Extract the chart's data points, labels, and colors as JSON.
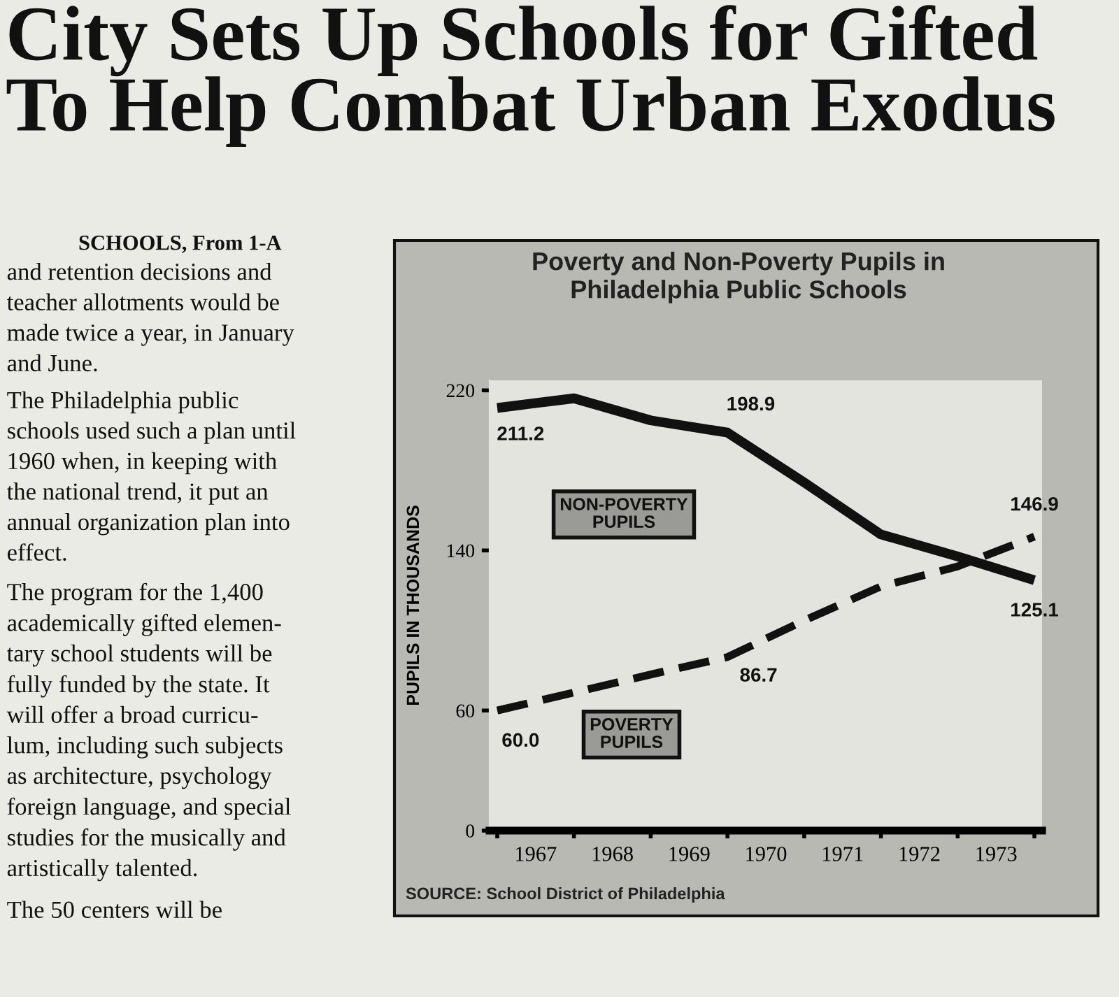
{
  "chart_data": [
    {
      "type": "other",
      "title": "City Sets Up Schools for Gifted\nTo Help Combat Urban Exodus",
      "subtitle": "SCHOOLS, From 1-A",
      "annotations": [
        "and retention decisions and\nteacher allotments would be\nmade twice a year, in January\nand June.",
        "The Philadelphia public\nschools used such a plan until\n1960 when, in keeping with\nthe national trend, it put an\nannual organization plan into\neffect.",
        "The program for the 1,400\nacademically gifted elemen-\ntary school students will be\nfully funded by the state. It\nwill offer a broad curricu-\nlum, including such subjects\nas architecture, psychology\nforeign language, and special\nstudies for the musically and\nartistically talented.",
        "The 50 centers will be"
      ]
    },
    {
      "type": "line",
      "title": "Poverty and Non-Poverty Pupils in\nPhiladelphia Public Schools",
      "ylabel": "PUPILS IN THOUSANDS",
      "x": [
        1967,
        1968,
        1969,
        1970,
        1971,
        1972,
        1973,
        1974
      ],
      "series": [
        {
          "name": "NON-POVERTY\nPUPILS",
          "color": "#111111",
          "line_style": "solid",
          "values": [
            211.2,
            216,
            205,
            198.9,
            174,
            148,
            137,
            125.1
          ],
          "value_labels": [
            "211.2",
            null,
            null,
            "198.9",
            null,
            null,
            null,
            "125.1"
          ]
        },
        {
          "name": "POVERTY\nPUPILS",
          "color": "#111111",
          "line_style": "dashed",
          "values": [
            60.0,
            69,
            78,
            86.7,
            105,
            122,
            132,
            146.9
          ],
          "value_labels": [
            "60.0",
            null,
            null,
            "86.7",
            null,
            null,
            null,
            "146.9"
          ]
        }
      ],
      "xlim": [
        1966.9,
        1974.1
      ],
      "xticks": [
        {
          "value": 1967,
          "label": null
        },
        {
          "value": 1968,
          "label": null
        },
        {
          "value": 1969,
          "label": null
        },
        {
          "value": 1970,
          "label": null
        },
        {
          "value": 1971,
          "label": null
        },
        {
          "value": 1972,
          "label": null
        },
        {
          "value": 1973,
          "label": null
        },
        {
          "value": 1974,
          "label": null
        },
        {
          "value": 1967.5,
          "label": "1967"
        },
        {
          "value": 1968.5,
          "label": "1968"
        },
        {
          "value": 1969.5,
          "label": "1969"
        },
        {
          "value": 1970.5,
          "label": "1970"
        },
        {
          "value": 1971.5,
          "label": "1971"
        },
        {
          "value": 1972.5,
          "label": "1972"
        },
        {
          "value": 1973.5,
          "label": "1973"
        }
      ],
      "ylim": [
        0,
        225
      ],
      "yticks": [
        0,
        60,
        140,
        220
      ],
      "marker": "none",
      "grid": false,
      "legend": false,
      "annotations": [
        "SOURCE: School District of Philadelphia"
      ]
    }
  ]
}
